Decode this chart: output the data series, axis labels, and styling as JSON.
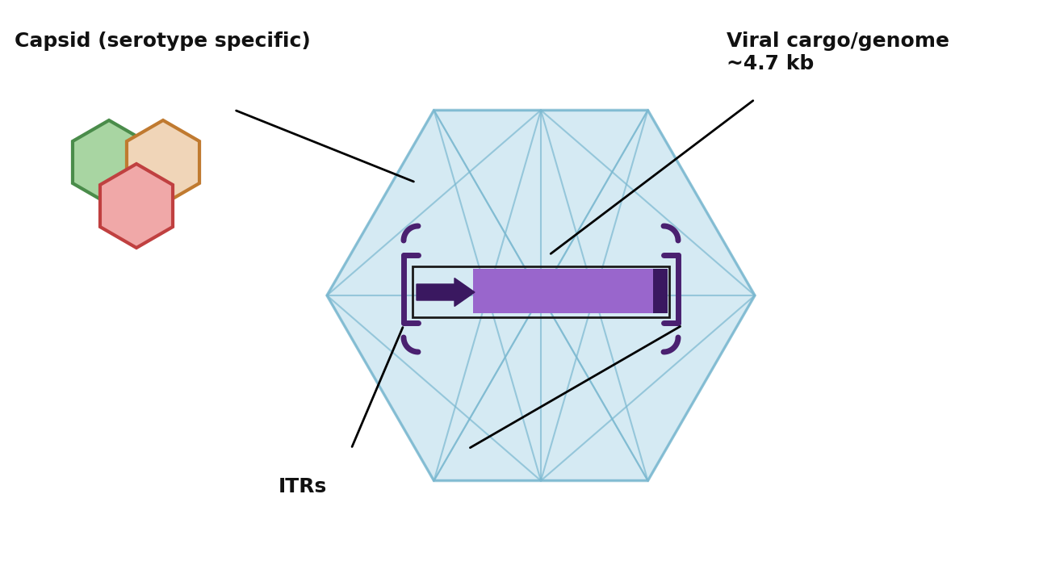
{
  "bg_color": "#ffffff",
  "capsid_label": "Capsid (serotype specific)",
  "cargo_label": "Viral cargo/genome\n~4.7 kb",
  "itr_label": "ITRs",
  "hex_colors": [
    {
      "face": "#a8d5a2",
      "edge": "#4a8c4a"
    },
    {
      "face": "#f0d5b8",
      "edge": "#c07a30"
    },
    {
      "face": "#f0a8a8",
      "edge": "#c04040"
    }
  ],
  "capsid_face": "#c8e4f0",
  "capsid_edge": "#7ab8d0",
  "capsid_alpha": 0.75,
  "itr_color": "#4a2070",
  "promoter_color": "#3a1860",
  "transgene_color": "#9966cc",
  "dark_block_color": "#3a1860",
  "genome_outline_color": "#222222",
  "label_color": "#111111"
}
